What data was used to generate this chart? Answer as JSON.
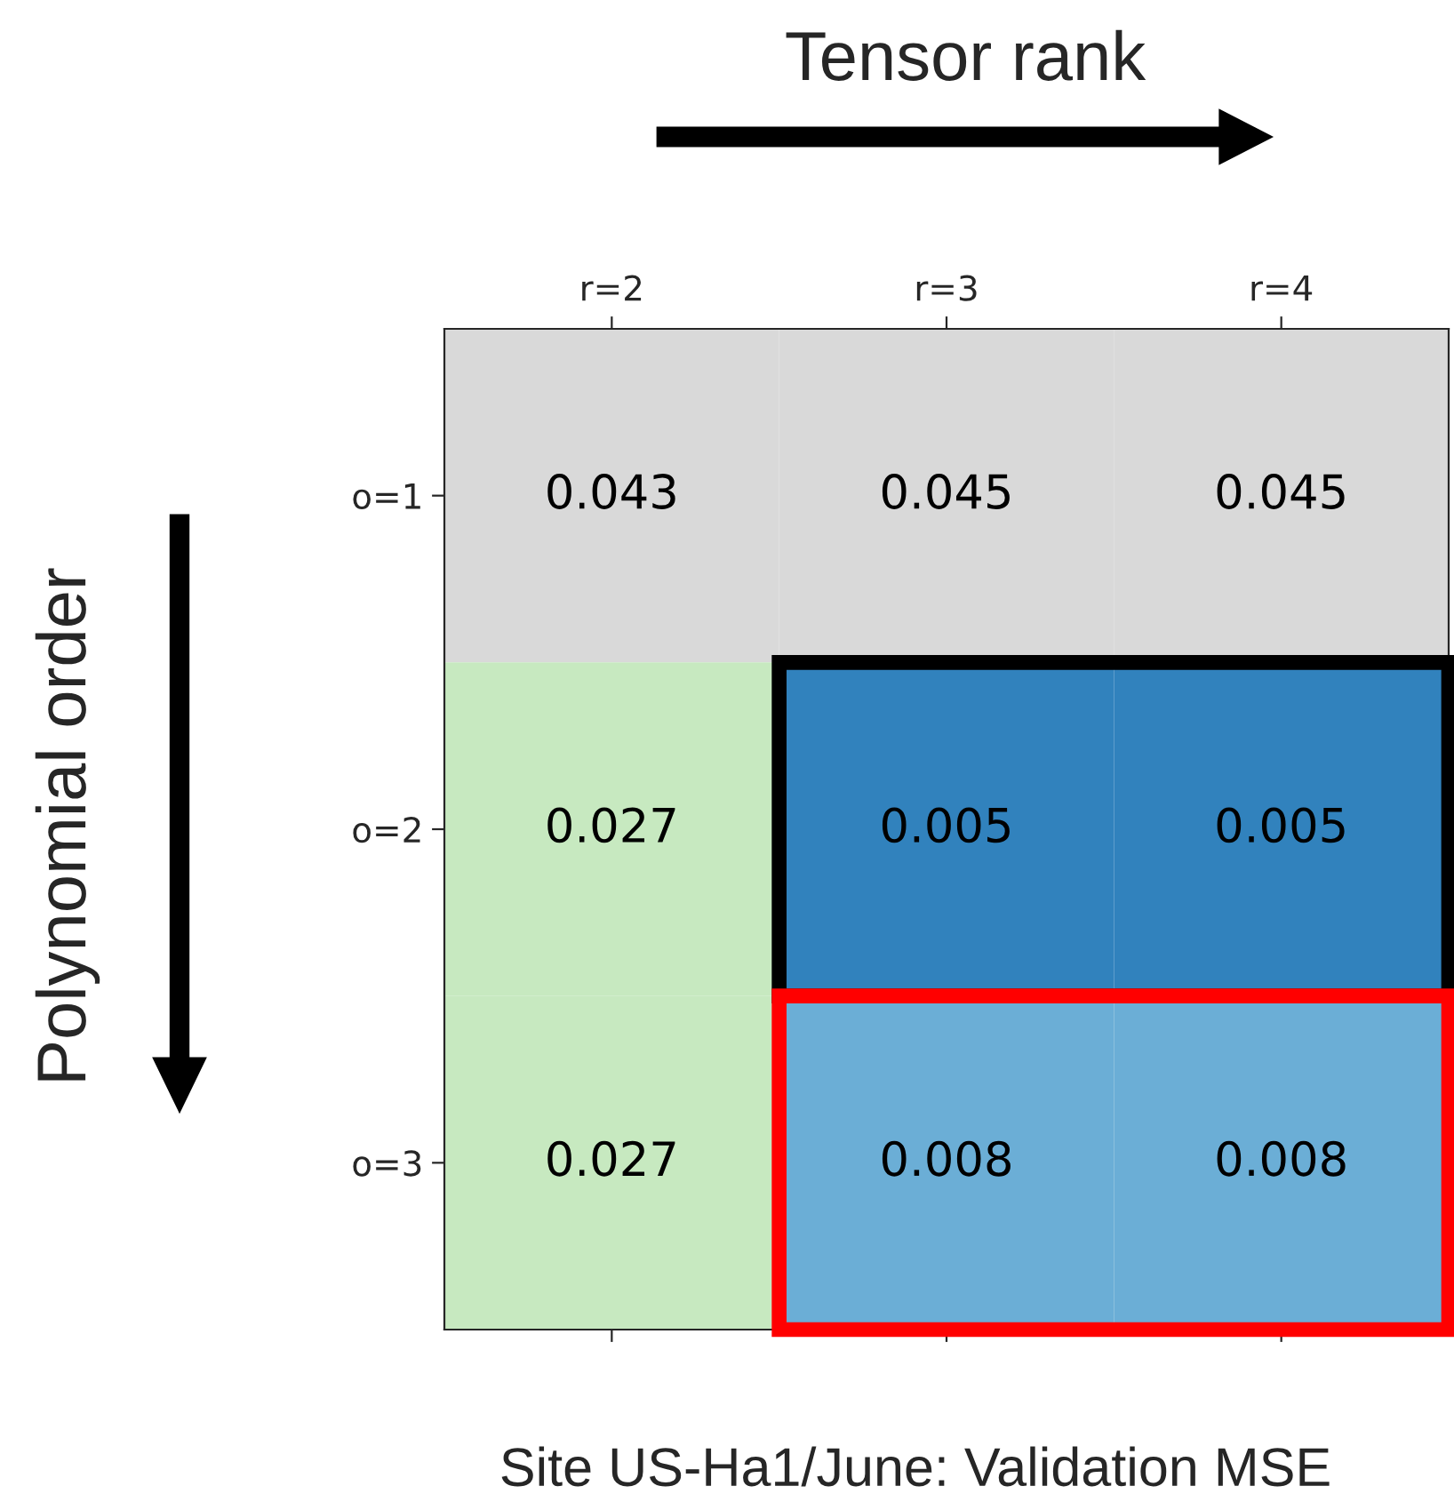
{
  "chart_data": {
    "type": "heatmap",
    "xlabel": "Tensor rank",
    "ylabel": "Polynomial order",
    "categories": [
      "r=2",
      "r=3",
      "r=4"
    ],
    "y_categories": [
      "o=1",
      "o=2",
      "o=3"
    ],
    "cells": [
      [
        0.043,
        0.045,
        0.045
      ],
      [
        0.027,
        0.005,
        0.005
      ],
      [
        0.027,
        0.008,
        0.008
      ]
    ],
    "colors": [
      [
        "#d9d9d9",
        "#d9d9d9",
        "#d9d9d9"
      ],
      [
        "#c7e9c0",
        "#3182bd",
        "#3182bd"
      ],
      [
        "#c7e9c0",
        "#6baed6",
        "#6baed6"
      ]
    ],
    "data_labels": true,
    "annotations": [
      "Site US-Ha1/June: Validation MSE"
    ]
  }
}
